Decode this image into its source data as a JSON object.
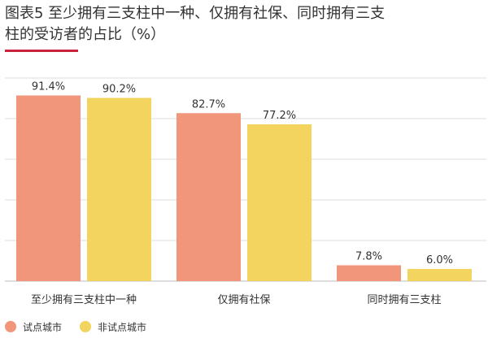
{
  "chart_data": {
    "type": "bar",
    "title": "图表5 至少拥有三支柱中一种、仅拥有社保、同时拥有三支柱的受访者的占比（%）",
    "categories": [
      "至少拥有三支柱中一种",
      "仅拥有社保",
      "同时拥有三支柱"
    ],
    "series": [
      {
        "name": "试点城市",
        "values": [
          91.4,
          82.7,
          7.8
        ],
        "color": "#F2967B"
      },
      {
        "name": "非试点城市",
        "values": [
          90.2,
          77.2,
          6.0
        ],
        "color": "#F2D45E"
      }
    ],
    "value_labels": [
      [
        "91.4%",
        "82.7%",
        "7.8%"
      ],
      [
        "90.2%",
        "77.2%",
        "6.0%"
      ]
    ],
    "ylim": [
      0,
      100
    ],
    "grid": true,
    "legend_position": "bottom-left"
  },
  "colors": {
    "accent": "#C8243E",
    "grid": "#DDDDDD",
    "axis": "#BBBBBB",
    "text": "#333333"
  }
}
